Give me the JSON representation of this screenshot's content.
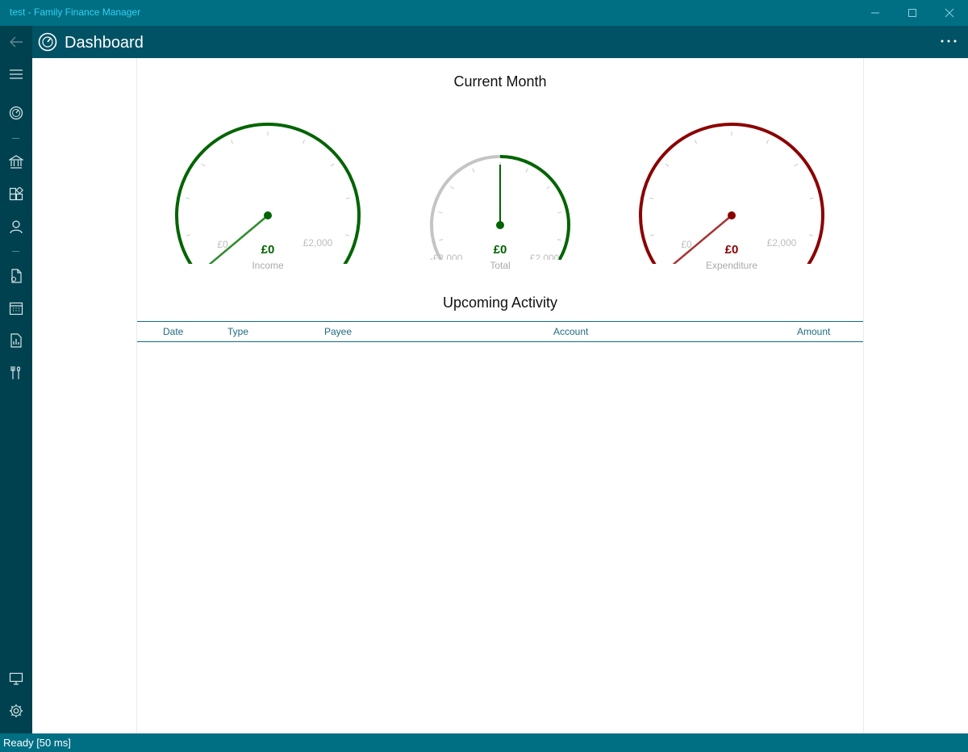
{
  "window": {
    "title": "test - Family Finance Manager",
    "controls": {
      "minimize_icon": "minimize-icon",
      "maximize_icon": "maximize-icon",
      "close_icon": "close-icon"
    }
  },
  "header": {
    "back_icon": "back-arrow-icon",
    "page_icon": "dashboard-icon",
    "title": "Dashboard",
    "more_icon": "more-icon"
  },
  "sidebar": {
    "items": [
      {
        "name": "menu",
        "icon": "hamburger-icon"
      },
      {
        "name": "dashboard",
        "icon": "dashboard-icon"
      },
      {
        "name": "accounts",
        "icon": "bank-icon"
      },
      {
        "name": "categories",
        "icon": "categories-icon"
      },
      {
        "name": "payees",
        "icon": "person-icon"
      },
      {
        "name": "transactions",
        "icon": "document-icon"
      },
      {
        "name": "calendar",
        "icon": "calendar-icon"
      },
      {
        "name": "reports",
        "icon": "report-icon"
      },
      {
        "name": "tools",
        "icon": "tools-icon"
      },
      {
        "name": "screen",
        "icon": "monitor-icon"
      },
      {
        "name": "settings",
        "icon": "gear-icon"
      }
    ]
  },
  "current_month": {
    "title": "Current Month",
    "gauges": [
      {
        "label": "Income",
        "value": "£0",
        "min_label": "£0",
        "max_label": "£2,000",
        "color": "#006400",
        "needle_fraction": 0
      },
      {
        "label": "Total",
        "value": "£0",
        "min_label": "-£2,000",
        "max_label": "£2,000",
        "color": "#006400",
        "needle_fraction": 0.5
      },
      {
        "label": "Expenditure",
        "value": "£0",
        "min_label": "£0",
        "max_label": "£2,000",
        "color": "#8b0000",
        "needle_fraction": 0
      }
    ]
  },
  "upcoming": {
    "title": "Upcoming Activity",
    "columns": [
      "Date",
      "Type",
      "Payee",
      "Account",
      "Amount"
    ],
    "rows": []
  },
  "status": {
    "text": "Ready [50 ms]"
  },
  "colors": {
    "titlebar": "#006f84",
    "header": "#005264",
    "sidebar": "#00414f",
    "income": "#006400",
    "expenditure": "#8b0000"
  }
}
